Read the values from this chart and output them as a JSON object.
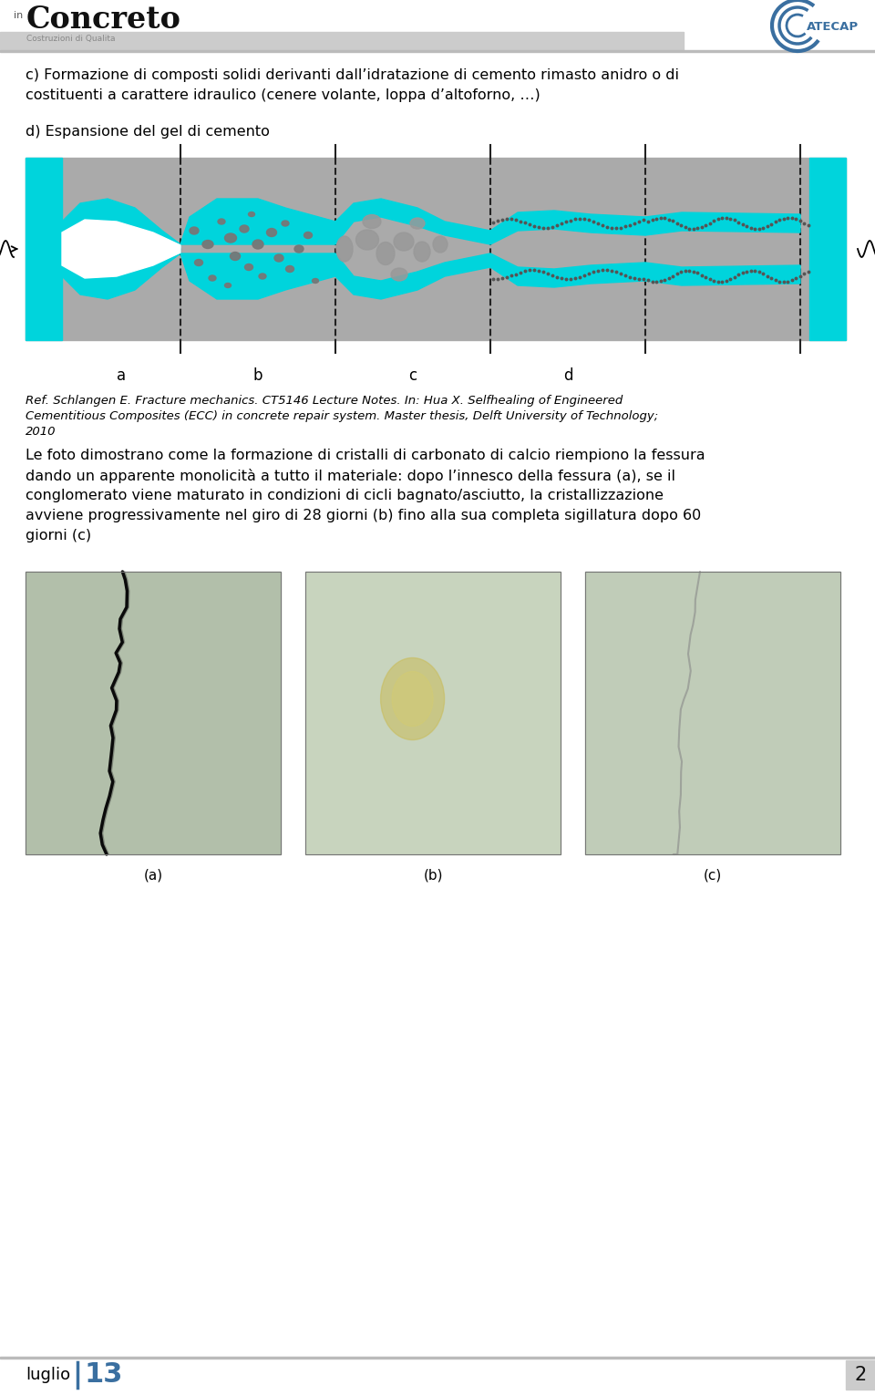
{
  "bg_color": "#ffffff",
  "accent_color": "#3a6fa0",
  "logo_color": "#3a6fa0",
  "footer_text": "luglio",
  "footer_number": "13",
  "footer_page": "2",
  "text_c_line1": "c) Formazione di composti solidi derivanti dall’idratazione di cemento rimasto anidro o di",
  "text_c_line2": "costituenti a carattere idraulico (cenere volante, loppa d’altoforno, …)",
  "text_d": "d) Espansione del gel di cemento",
  "ref_line1": "Ref. Schlangen E. Fracture mechanics. CT5146 Lecture Notes. In: Hua X. Selfhealing of Engineered",
  "ref_line2": "Cementitious Composites (ECC) in concrete repair system. Master thesis, Delft University of Technology;",
  "ref_line3": "2010",
  "body_line1": "Le foto dimostrano come la formazione di cristalli di carbonato di calcio riempiono la fessura",
  "body_line2": "dando un apparente monolicità a tutto il materiale: dopo l’innesco della fessura (a), se il",
  "body_line3": "conglomerato viene maturato in condizioni di cicli bagnato/asciutto, la cristallizzazione",
  "body_line4": "avviene progressivamente nel giro di 28 giorni (b) fino alla sua completa sigillatura dopo 60",
  "body_line5": "giorni (c)",
  "caption_a": "(a)",
  "caption_b": "(b)",
  "caption_c": "(c)",
  "header_gray": "#cccccc",
  "diag_gray": "#aaaaaa",
  "diag_cyan": "#00d4dc",
  "crystal_gray": "#777777"
}
